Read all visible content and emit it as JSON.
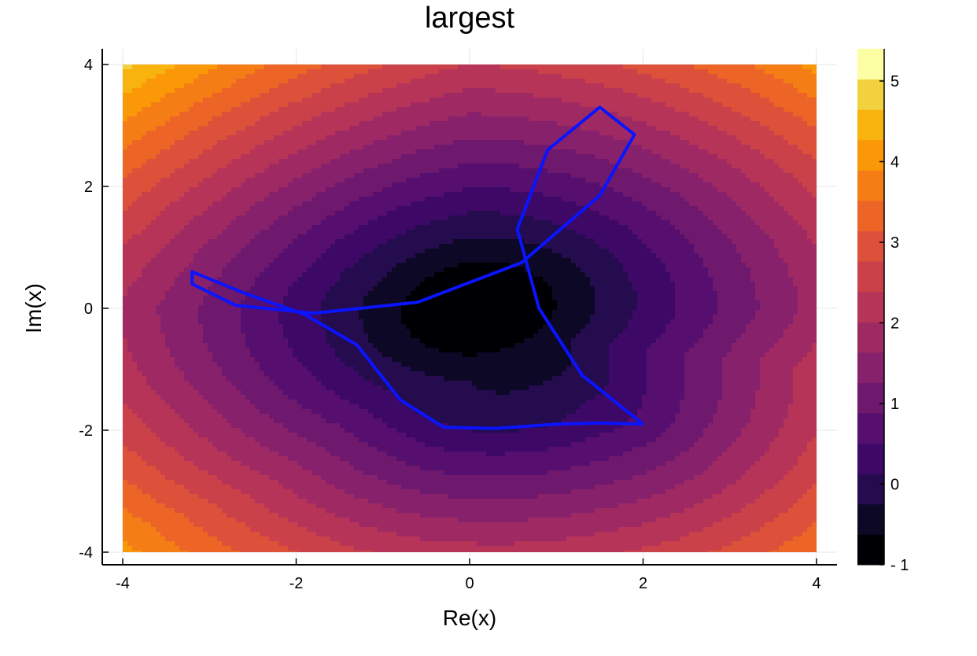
{
  "chart_data": {
    "type": "heatmap",
    "title": "largest",
    "xlabel": "Re(x)",
    "ylabel": "Im(x)",
    "xlim": [
      -4,
      4
    ],
    "ylim": [
      -4,
      4
    ],
    "x_ticks": [
      "-4",
      "-2",
      "0",
      "2",
      "4"
    ],
    "y_ticks": [
      "-4",
      "-2",
      "0",
      "2",
      "4"
    ],
    "x_tick_values": [
      -4,
      -2,
      0,
      2,
      4
    ],
    "y_tick_values": [
      -4,
      -2,
      0,
      2,
      4
    ],
    "grid": true,
    "colorbar": {
      "colormap": "inferno",
      "min": -1,
      "max": 5.4,
      "levels": [
        -1,
        -0.6,
        -0.2,
        0.2,
        0.6,
        1.0,
        1.4,
        1.8,
        2.2,
        2.6,
        3.0,
        3.4,
        3.8,
        4.2,
        4.6,
        5.0,
        5.4
      ],
      "tick_labels": [
        "- 1",
        "0",
        "1",
        "2",
        "3",
        "4",
        "5"
      ],
      "tick_values": [
        -1,
        0,
        1,
        2,
        3,
        4,
        5
      ]
    },
    "contour_colors": [
      "#000004",
      "#0c0826",
      "#240c4f",
      "#3e0966",
      "#560f6e",
      "#6e186e",
      "#87216b",
      "#9f2a63",
      "#b63458",
      "#cb4149",
      "#dd513a",
      "#ec6527",
      "#f57d15",
      "#fa9807",
      "#f9b30e",
      "#f2d13f",
      "#fcfea4"
    ],
    "curve": {
      "color": "#0a14ff",
      "points": [
        [
          2.0,
          -1.9
        ],
        [
          1.5,
          -1.88
        ],
        [
          1.0,
          -1.9
        ],
        [
          0.3,
          -1.97
        ],
        [
          -0.3,
          -1.95
        ],
        [
          -0.8,
          -1.5
        ],
        [
          -1.3,
          -0.6
        ],
        [
          -1.9,
          -0.1
        ],
        [
          -2.6,
          0.25
        ],
        [
          -3.2,
          0.6
        ],
        [
          -3.2,
          0.4
        ],
        [
          -2.7,
          0.05
        ],
        [
          -1.8,
          -0.08
        ],
        [
          -0.6,
          0.1
        ],
        [
          0.6,
          0.75
        ],
        [
          1.5,
          1.85
        ],
        [
          1.9,
          2.85
        ],
        [
          1.5,
          3.3
        ],
        [
          0.9,
          2.6
        ],
        [
          0.55,
          1.3
        ],
        [
          0.8,
          0.0
        ],
        [
          1.3,
          -1.1
        ],
        [
          2.0,
          -1.9
        ]
      ]
    }
  }
}
